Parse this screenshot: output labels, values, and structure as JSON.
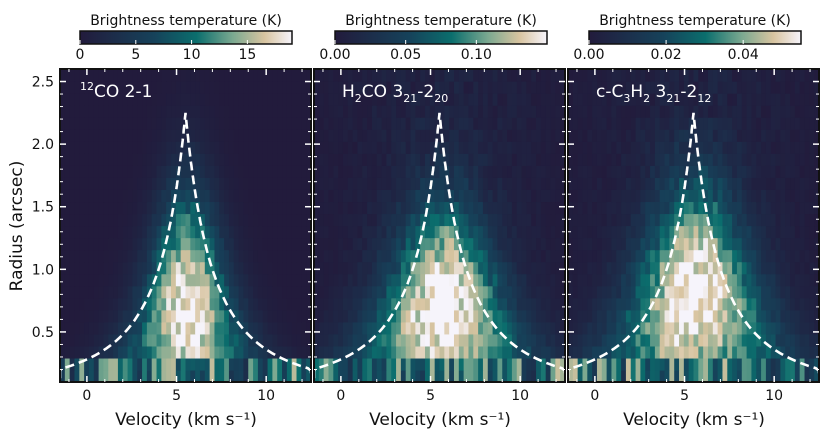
{
  "colors": {
    "cmap_low": "#221b3c",
    "cmap_mid": "#0b6e6d",
    "cmap_high": "#d8c4a0",
    "cmap_top": "#f6f4fb",
    "model_curve": "#ffffff",
    "panel_border": "#111111"
  },
  "chart_data": [
    {
      "type": "heatmap",
      "panel_label": {
        "prefix_sup": "12",
        "main": "CO 2-1"
      },
      "colorbar": {
        "title": "Brightness temperature (K)",
        "range": [
          0,
          19
        ],
        "ticks": [
          0,
          5,
          10,
          15
        ],
        "tick_labels": [
          "0",
          "5",
          "10",
          "15"
        ]
      },
      "xlabel": "Velocity (km s⁻¹)",
      "ylabel": "Radius (arcsec)",
      "xlim": [
        -1.5,
        12.5
      ],
      "ylim": [
        0.1,
        2.6
      ],
      "xticks": [
        0,
        5,
        10
      ],
      "xtick_labels": [
        "0",
        "5",
        "10"
      ],
      "yticks": [
        0.5,
        1.0,
        1.5,
        2.0,
        2.5
      ],
      "ytick_labels": [
        "0.5",
        "1.0",
        "1.5",
        "2.0",
        "2.5"
      ],
      "emission": {
        "peak": 19,
        "center_v": 5.6,
        "peak_r": 0.7,
        "radial_scale": 0.9,
        "width_scale": 1.1,
        "max_radius": 2.6
      },
      "model_curve": {
        "v0": 5.5,
        "vk": 4.5,
        "r_top": 2.25
      }
    },
    {
      "type": "heatmap",
      "panel_label": {
        "main_parts": [
          "H",
          "2",
          "CO 3",
          "21",
          "-2",
          "20"
        ]
      },
      "colorbar": {
        "title": "Brightness temperature (K)",
        "range": [
          0,
          0.15
        ],
        "ticks": [
          0,
          0.05,
          0.1
        ],
        "tick_labels": [
          "0.00",
          "0.05",
          "0.10"
        ]
      },
      "xlabel": "Velocity (km s⁻¹)",
      "xlim": [
        -1.5,
        12.5
      ],
      "ylim": [
        0.1,
        2.6
      ],
      "xticks": [
        0,
        5,
        10
      ],
      "xtick_labels": [
        "0",
        "5",
        "10"
      ],
      "emission": {
        "peak": 0.145,
        "center_v": 5.7,
        "peak_r": 0.7,
        "radial_scale": 0.8,
        "width_scale": 1.5,
        "max_radius": 2.2
      },
      "model_curve": {
        "v0": 5.5,
        "vk": 4.5,
        "r_top": 2.25
      }
    },
    {
      "type": "heatmap",
      "panel_label": {
        "main_parts": [
          "c-C",
          "3",
          "H",
          "2",
          " 3",
          "21",
          "-2",
          "12"
        ]
      },
      "colorbar": {
        "title": "Brightness temperature (K)",
        "range": [
          0,
          0.055
        ],
        "ticks": [
          0,
          0.02,
          0.04
        ],
        "tick_labels": [
          "0.00",
          "0.02",
          "0.04"
        ]
      },
      "xlabel": "Velocity (km s⁻¹)",
      "xlim": [
        -1.5,
        12.5
      ],
      "ylim": [
        0.1,
        2.6
      ],
      "xticks": [
        0,
        5,
        10
      ],
      "xtick_labels": [
        "0",
        "5",
        "10"
      ],
      "emission": {
        "peak": 0.053,
        "center_v": 5.6,
        "peak_r": 0.8,
        "radial_scale": 0.85,
        "width_scale": 1.6,
        "max_radius": 2.2
      },
      "model_curve": {
        "v0": 5.5,
        "vk": 4.5,
        "r_top": 2.25
      }
    }
  ]
}
